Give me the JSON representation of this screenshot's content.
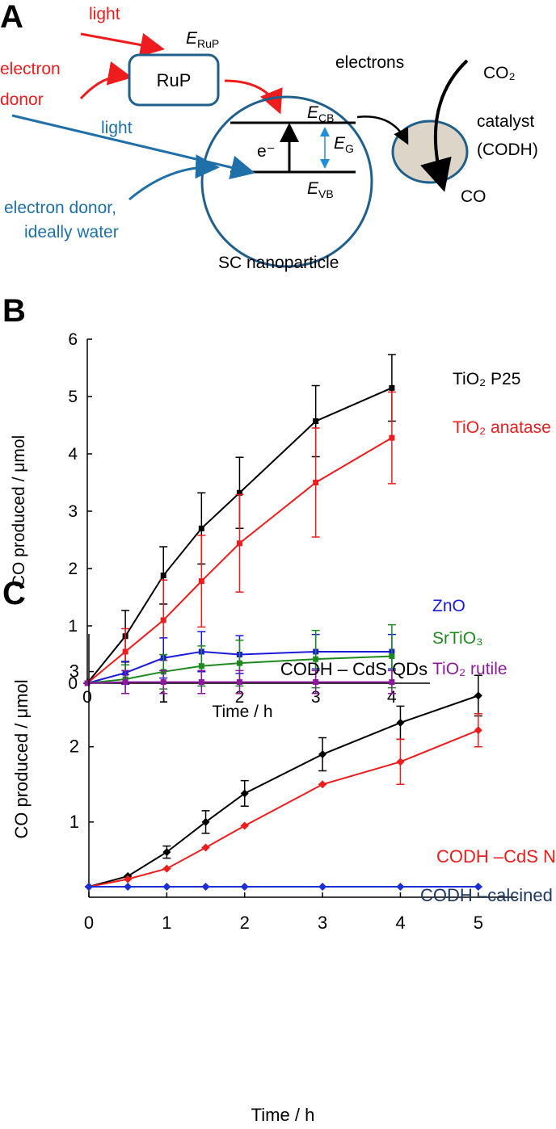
{
  "panel_labels": [
    "A",
    "B",
    "C"
  ],
  "diagram": {
    "light_red": "light",
    "electron_donor_red": [
      "electron",
      "donor"
    ],
    "rup": "RuP",
    "e_rup": {
      "symbol": "E",
      "subscript": "RuP"
    },
    "light_blue": "light",
    "electron_donor_blue": [
      "electron donor,",
      "ideally water"
    ],
    "e_minus": "e⁻",
    "e_cb": {
      "symbol": "E",
      "subscript": "CB"
    },
    "e_g": {
      "symbol": "E",
      "subscript": "G"
    },
    "e_vb": {
      "symbol": "E",
      "subscript": "VB"
    },
    "sc": "SC nanoparticle",
    "electrons": "electrons",
    "co2": "CO₂",
    "catalyst": [
      "catalyst",
      "(CODH)"
    ],
    "co": "CO"
  },
  "chart_data": [
    {
      "type": "line",
      "marker": "square",
      "x_label": "Time / h",
      "y_label": "CO produced / μmol",
      "xlim": [
        0,
        4.5
      ],
      "ylim": [
        0,
        6
      ],
      "xticks": [
        0,
        1,
        2,
        3,
        4
      ],
      "yticks": [
        0,
        1,
        2,
        3,
        4,
        5,
        6
      ],
      "x": [
        0,
        0.5,
        1,
        1.5,
        2,
        3,
        4
      ],
      "series": [
        {
          "name": "TiO₂ P25",
          "color": "#000000",
          "values": [
            0,
            0.82,
            1.88,
            2.7,
            3.32,
            4.57,
            5.15
          ],
          "errors": [
            0,
            0.45,
            0.5,
            0.62,
            0.62,
            0.62,
            0.58
          ]
        },
        {
          "name": "TiO₂ anatase",
          "color": "#ee1c1c",
          "values": [
            0,
            0.55,
            1.1,
            1.78,
            2.44,
            3.5,
            4.28
          ],
          "errors": [
            0,
            0.4,
            0.7,
            0.8,
            0.85,
            0.95,
            0.8
          ]
        },
        {
          "name": "ZnO",
          "color": "#1a1adf",
          "values": [
            0,
            0.18,
            0.44,
            0.55,
            0.5,
            0.55,
            0.55
          ],
          "errors": [
            0,
            0.2,
            0.35,
            0.35,
            0.33,
            0.3,
            0.3
          ]
        },
        {
          "name": "SrTiO₃",
          "color": "#1e8a1e",
          "values": [
            0,
            0.07,
            0.2,
            0.3,
            0.35,
            0.42,
            0.47
          ],
          "errors": [
            0,
            0.25,
            0.3,
            0.35,
            0.4,
            0.5,
            0.55
          ]
        },
        {
          "name": "TiO₂ rutile",
          "color": "#8b1a9b",
          "values": [
            0,
            0.02,
            0.02,
            0.02,
            0.02,
            0.02,
            0.02
          ],
          "errors": [
            0,
            0.2,
            0.2,
            0.2,
            0.2,
            0.2,
            0.2
          ]
        }
      ]
    },
    {
      "type": "line",
      "marker": "diamond",
      "x_label": "Time / h",
      "y_label": "CO produced  / μmol",
      "xlim": [
        0,
        5.5
      ],
      "ylim": [
        0,
        3.5
      ],
      "xticks": [
        0,
        1,
        2,
        3,
        4,
        5
      ],
      "yticks": [
        1,
        2,
        3
      ],
      "x": [
        0,
        0.5,
        1,
        1.5,
        2,
        3,
        4,
        5
      ],
      "series": [
        {
          "name": "CODH – CdS QDs",
          "color": "#000000",
          "values": [
            0.14,
            0.28,
            0.6,
            1.0,
            1.38,
            1.9,
            2.32,
            2.68
          ],
          "errors": [
            0,
            0,
            0.08,
            0.15,
            0.17,
            0.22,
            0.22,
            0.27
          ]
        },
        {
          "name": "CODH –CdS NRs",
          "color": "#ee1c1c",
          "values": [
            0.14,
            0.24,
            0.38,
            0.66,
            0.95,
            1.5,
            1.8,
            2.22
          ],
          "errors": [
            0,
            0,
            0,
            0,
            0,
            0,
            0.3,
            0.22
          ]
        },
        {
          "name": "CODH –calcined CdS",
          "color": "#1a2fd8",
          "label_color": "#1f3864",
          "values": [
            0.14,
            0.14,
            0.14,
            0.14,
            0.14,
            0.14,
            0.14,
            0.14
          ],
          "errors": [
            0,
            0,
            0,
            0,
            0,
            0,
            0,
            0
          ]
        }
      ]
    }
  ]
}
